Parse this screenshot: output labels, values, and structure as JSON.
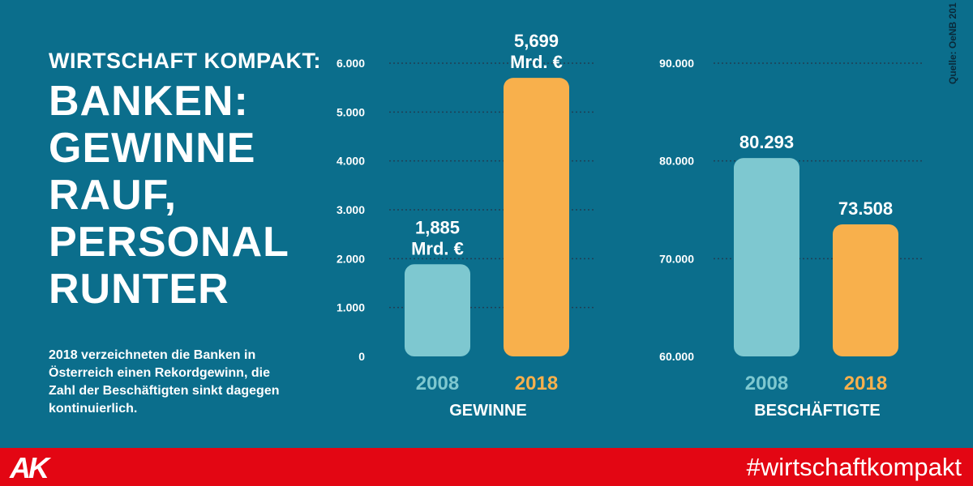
{
  "header": {
    "kicker": "WIRTSCHAFT KOMPAKT:",
    "headline_lines": [
      "BANKEN:",
      "GEWINNE",
      "RAUF,",
      "PERSONAL",
      "RUNTER"
    ],
    "intro": "2018 verzeichneten die Banken in Österreich einen Rekordgewinn, die Zahl der Beschäftigten sinkt dagegen kontinuierlich."
  },
  "source": "Quelle: OeNB 201",
  "footer": {
    "logo": "AK",
    "hashtag": "#wirtschaftkompakt"
  },
  "colors": {
    "background": "#0b6e8c",
    "bar_2008": "#7ec8d0",
    "bar_2018": "#f8b04c",
    "footer": "#e30613",
    "year_2008_text": "#7ec8d0",
    "year_2018_text": "#f8b04c"
  },
  "chart_data": [
    {
      "type": "bar",
      "xlabel": "GEWINNE",
      "categories": [
        "2008",
        "2018"
      ],
      "values": [
        1.885,
        5.699
      ],
      "value_labels": [
        [
          "1,885",
          "Mrd. €"
        ],
        [
          "5,699",
          "Mrd. €"
        ]
      ],
      "yticks": [
        0,
        1000,
        2000,
        3000,
        4000,
        5000,
        6000
      ],
      "ytick_labels": [
        "0",
        "1.000",
        "2.000",
        "3.000",
        "4.000",
        "5.000",
        "6.000"
      ],
      "ylim": [
        0,
        6000
      ],
      "value_scale": 1000,
      "grid": true
    },
    {
      "type": "bar",
      "xlabel": "BESCHÄFTIGTE",
      "categories": [
        "2008",
        "2018"
      ],
      "values": [
        80293,
        73508
      ],
      "value_labels": [
        [
          "80.293"
        ],
        [
          "73.508"
        ]
      ],
      "yticks": [
        60000,
        70000,
        80000,
        90000
      ],
      "ytick_labels": [
        "60.000",
        "70.000",
        "80.000",
        "90.000"
      ],
      "ylim": [
        60000,
        90000
      ],
      "value_scale": 1,
      "grid": true
    }
  ]
}
